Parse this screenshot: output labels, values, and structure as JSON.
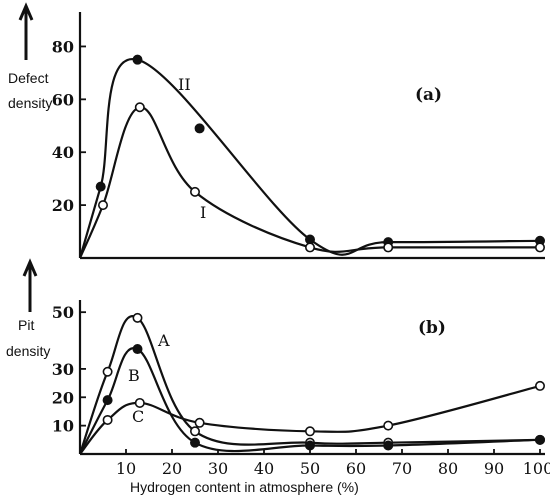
{
  "chart_data": [
    {
      "type": "line",
      "panel_label": "(a)",
      "ylabel": "Defect density",
      "xlim": [
        0,
        100
      ],
      "ylim": [
        0,
        90
      ],
      "yticks": [
        20,
        40,
        60,
        80
      ],
      "series": [
        {
          "name": "II",
          "marker": "filled",
          "x": [
            4.5,
            12.5,
            50,
            67,
            100
          ],
          "y": [
            27,
            75,
            7,
            6,
            6.5
          ],
          "extra_points": [
            {
              "x": 26,
              "y": 49
            }
          ]
        },
        {
          "name": "I",
          "marker": "open",
          "x": [
            5,
            13,
            25,
            50,
            67,
            100
          ],
          "y": [
            20,
            57,
            25,
            4,
            4,
            4
          ]
        }
      ]
    },
    {
      "type": "line",
      "panel_label": "(b)",
      "ylabel": "Pit density",
      "xlabel": "Hydrogen content in atmosphere  (%)",
      "xlim": [
        0,
        100
      ],
      "ylim": [
        0,
        55
      ],
      "yticks": [
        10,
        20,
        30,
        50
      ],
      "xticks": [
        10,
        20,
        30,
        40,
        50,
        60,
        70,
        80,
        90,
        100
      ],
      "series": [
        {
          "name": "A",
          "marker": "open",
          "x": [
            6,
            12.5,
            25,
            50,
            67,
            100
          ],
          "y": [
            29,
            48,
            8,
            4,
            4,
            5
          ]
        },
        {
          "name": "B",
          "marker": "filled",
          "x": [
            6,
            12.5,
            25,
            50,
            67,
            100
          ],
          "y": [
            19,
            37,
            4,
            3,
            3,
            5
          ]
        },
        {
          "name": "C",
          "marker": "open",
          "x": [
            6,
            13,
            26,
            50,
            67,
            100
          ],
          "y": [
            12,
            18,
            11,
            8,
            10,
            24
          ]
        }
      ]
    }
  ]
}
